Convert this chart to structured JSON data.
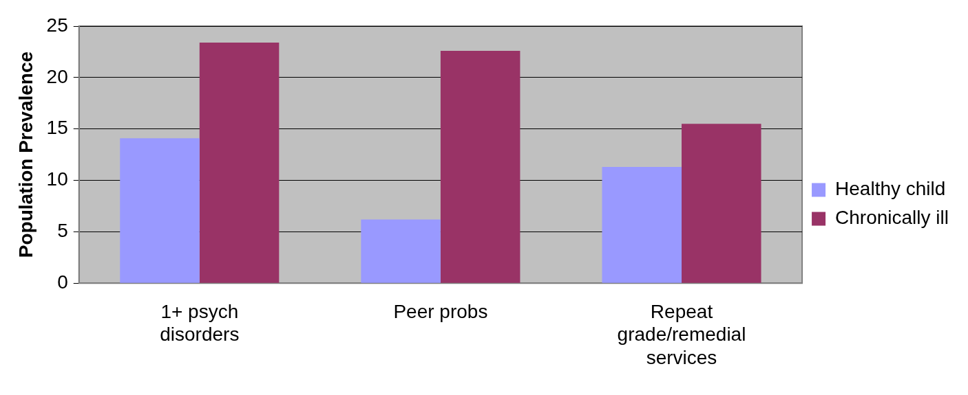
{
  "chart_data": {
    "type": "bar",
    "ylabel": "Population Prevalence",
    "categories": [
      "1+ psych disorders",
      "Peer probs",
      "Repeat grade/remedial services"
    ],
    "series": [
      {
        "name": "Healthy child",
        "color": "#9999ff",
        "values": [
          14.1,
          6.2,
          11.3
        ]
      },
      {
        "name": "Chronically ill",
        "color": "#993366",
        "values": [
          23.4,
          22.6,
          15.5
        ]
      }
    ],
    "ylim": [
      0,
      25
    ],
    "yticks": [
      0,
      5,
      10,
      15,
      20,
      25
    ],
    "grid": "y",
    "legend": "right"
  }
}
